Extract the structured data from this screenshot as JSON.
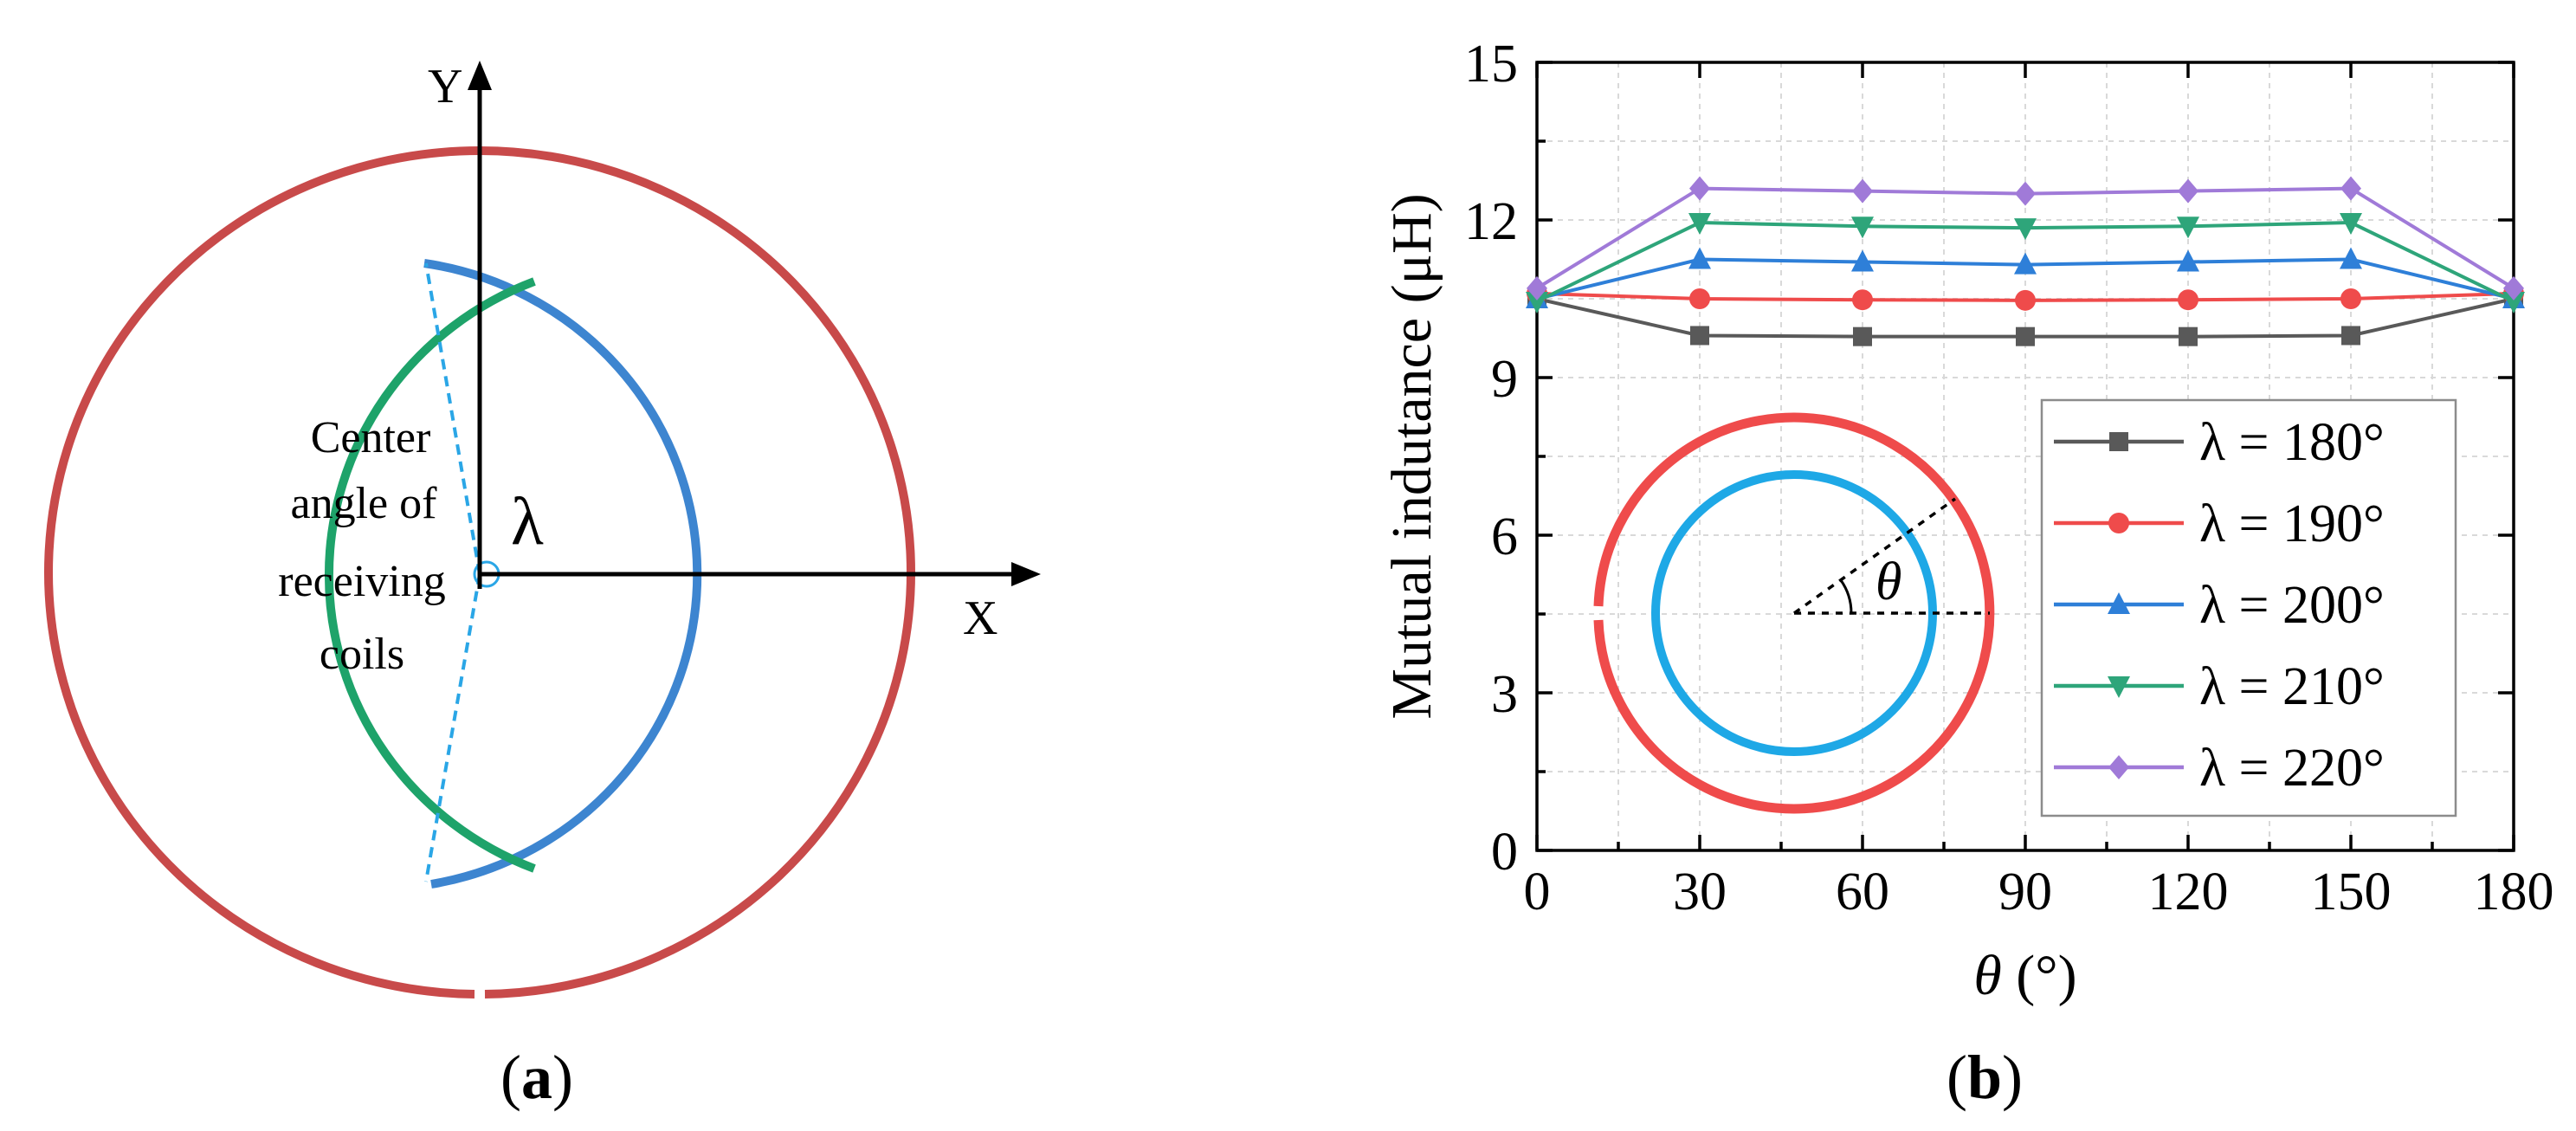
{
  "panel_a": {
    "caption_open": "(",
    "caption_letter": "a",
    "caption_close": ")",
    "y_axis_label": "Y",
    "x_axis_label": "X",
    "angle_symbol": "λ",
    "annotation_lines": [
      "Center",
      "angle of",
      "receiving",
      "coils"
    ],
    "colors": {
      "outer_coil": "#c84a4a",
      "inner_coil_blue": "#3d85d0",
      "inner_coil_green": "#1ea36a",
      "angle_line": "#2aa6e6"
    }
  },
  "panel_b": {
    "caption_open": "(",
    "caption_letter": "b",
    "caption_close": ")",
    "inset_symbol": "θ",
    "inset_colors": {
      "outer": "#ef4b4b",
      "inner": "#1ea8e6"
    }
  },
  "chart_data": {
    "type": "line",
    "title": "",
    "xlabel_symbol": "θ",
    "xlabel_unit": " (°)",
    "ylabel": "Mutual indutance (μH)",
    "x": [
      0,
      30,
      60,
      90,
      120,
      150,
      180
    ],
    "xlim": [
      0,
      180
    ],
    "ylim": [
      0,
      15
    ],
    "xticks": [
      "0",
      "30",
      "60",
      "90",
      "120",
      "150",
      "180"
    ],
    "yticks": [
      "0",
      "3",
      "6",
      "9",
      "12",
      "15"
    ],
    "grid": true,
    "legend_position": "bottom-right",
    "series": [
      {
        "name": "λ = 180°",
        "marker": "square",
        "color": "#595959",
        "values": [
          10.5,
          9.8,
          9.78,
          9.78,
          9.78,
          9.8,
          10.5
        ]
      },
      {
        "name": "λ = 190°",
        "marker": "circle",
        "color": "#ef4b4b",
        "values": [
          10.6,
          10.5,
          10.48,
          10.47,
          10.48,
          10.5,
          10.6
        ]
      },
      {
        "name": "λ = 200°",
        "marker": "triangle-up",
        "color": "#2e7fd8",
        "values": [
          10.5,
          11.25,
          11.2,
          11.15,
          11.2,
          11.25,
          10.5
        ]
      },
      {
        "name": "λ = 210°",
        "marker": "triangle-down",
        "color": "#2ea57a",
        "values": [
          10.45,
          11.95,
          11.88,
          11.85,
          11.88,
          11.95,
          10.45
        ]
      },
      {
        "name": "λ = 220°",
        "marker": "diamond",
        "color": "#a07ad8",
        "values": [
          10.7,
          12.6,
          12.55,
          12.5,
          12.55,
          12.6,
          10.7
        ]
      }
    ]
  }
}
